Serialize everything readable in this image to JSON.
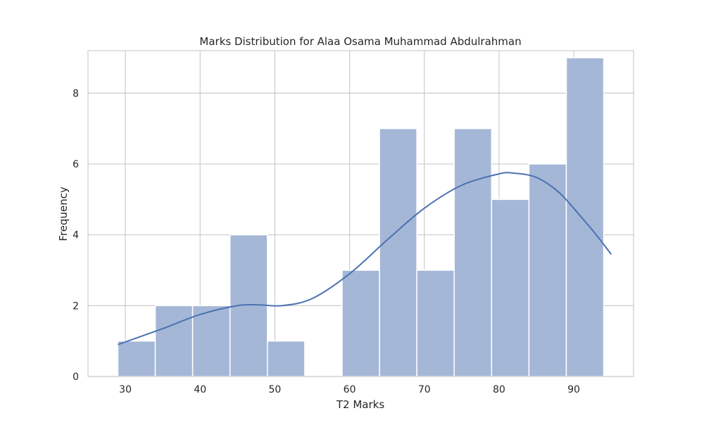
{
  "chart_data": {
    "type": "bar",
    "subtype": "histogram_with_kde",
    "title": "Marks Distribution for Alaa Osama Muhammad Abdulrahman",
    "xlabel": "T2 Marks",
    "ylabel": "Frequency",
    "xlim": [
      25,
      98
    ],
    "ylim": [
      0,
      9.2
    ],
    "xticks": [
      30,
      40,
      50,
      60,
      70,
      80,
      90
    ],
    "yticks": [
      0,
      2,
      4,
      6,
      8
    ],
    "grid": true,
    "bar_color": "#a5b7d7",
    "kde_color": "#4c72b0",
    "bins": [
      {
        "x0": 29,
        "x1": 34,
        "count": 1
      },
      {
        "x0": 34,
        "x1": 39,
        "count": 2
      },
      {
        "x0": 39,
        "x1": 44,
        "count": 2
      },
      {
        "x0": 44,
        "x1": 49,
        "count": 4
      },
      {
        "x0": 49,
        "x1": 54,
        "count": 1
      },
      {
        "x0": 54,
        "x1": 59,
        "count": 0
      },
      {
        "x0": 59,
        "x1": 64,
        "count": 3
      },
      {
        "x0": 64,
        "x1": 69,
        "count": 7
      },
      {
        "x0": 69,
        "x1": 74,
        "count": 3
      },
      {
        "x0": 74,
        "x1": 79,
        "count": 7
      },
      {
        "x0": 79,
        "x1": 84,
        "count": 5
      },
      {
        "x0": 84,
        "x1": 89,
        "count": 6
      },
      {
        "x0": 89,
        "x1": 94,
        "count": 9
      }
    ],
    "kde": {
      "x": [
        29,
        35,
        40,
        45,
        48,
        51,
        55,
        60,
        65,
        70,
        75,
        80,
        82,
        85,
        88,
        91,
        93,
        95
      ],
      "y": [
        0.9,
        1.35,
        1.75,
        2.0,
        2.02,
        2.0,
        2.2,
        2.9,
        3.85,
        4.75,
        5.4,
        5.72,
        5.74,
        5.62,
        5.2,
        4.5,
        4.0,
        3.45
      ]
    }
  }
}
